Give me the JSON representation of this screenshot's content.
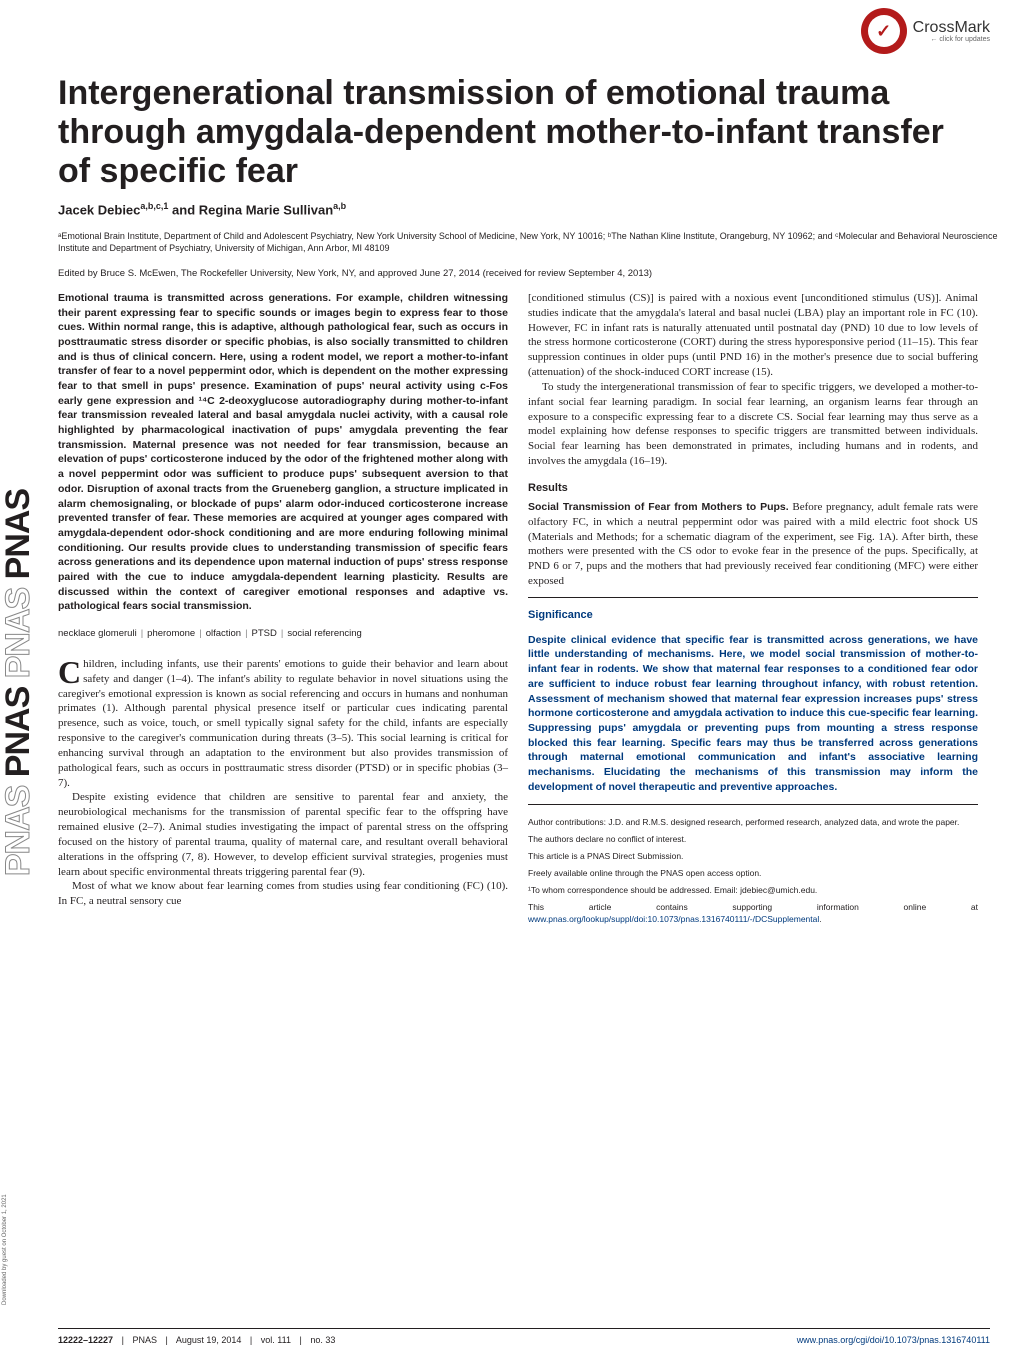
{
  "sidebar": {
    "pnas_text": "PNAS",
    "pnas_outline": "PNAS",
    "download_note": "Downloaded by guest on October 1, 2021"
  },
  "crossmark": {
    "label": "CrossMark",
    "sub": "← click for updates",
    "badge_bg": "#b31b1b",
    "check_glyph": "✓"
  },
  "title": "Intergenerational transmission of emotional trauma through amygdala-dependent mother-to-infant transfer of specific fear",
  "authors_html": "Jacek Debiec<sup>a,b,c,1</sup> and Regina Marie Sullivan<sup>a,b</sup>",
  "affiliations": "ᵃEmotional Brain Institute, Department of Child and Adolescent Psychiatry, New York University School of Medicine, New York, NY 10016; ᵇThe Nathan Kline Institute, Orangeburg, NY 10962; and ᶜMolecular and Behavioral Neuroscience Institute and Department of Psychiatry, University of Michigan, Ann Arbor, MI 48109",
  "edited": "Edited by Bruce S. McEwen, The Rockefeller University, New York, NY, and approved June 27, 2014 (received for review September 4, 2013)",
  "abstract": "Emotional trauma is transmitted across generations. For example, children witnessing their parent expressing fear to specific sounds or images begin to express fear to those cues. Within normal range, this is adaptive, although pathological fear, such as occurs in posttraumatic stress disorder or specific phobias, is also socially transmitted to children and is thus of clinical concern. Here, using a rodent model, we report a mother-to-infant transfer of fear to a novel peppermint odor, which is dependent on the mother expressing fear to that smell in pups' presence. Examination of pups' neural activity using c-Fos early gene expression and ¹⁴C 2-deoxyglucose autoradiography during mother-to-infant fear transmission revealed lateral and basal amygdala nuclei activity, with a causal role highlighted by pharmacological inactivation of pups' amygdala preventing the fear transmission. Maternal presence was not needed for fear transmission, because an elevation of pups' corticosterone induced by the odor of the frightened mother along with a novel peppermint odor was sufficient to produce pups' subsequent aversion to that odor. Disruption of axonal tracts from the Grueneberg ganglion, a structure implicated in alarm chemosignaling, or blockade of pups' alarm odor-induced corticosterone increase prevented transfer of fear. These memories are acquired at younger ages compared with amygdala-dependent odor-shock conditioning and are more enduring following minimal conditioning. Our results provide clues to understanding transmission of specific fears across generations and its dependence upon maternal induction of pups' stress response paired with the cue to induce amygdala-dependent learning plasticity. Results are discussed within the context of caregiver emotional responses and adaptive vs. pathological fears social transmission.",
  "keywords": [
    "necklace glomeruli",
    "pheromone",
    "olfaction",
    "PTSD",
    "social referencing"
  ],
  "body_left": {
    "dropcap": "C",
    "p1": "hildren, including infants, use their parents' emotions to guide their behavior and learn about safety and danger (1–4). The infant's ability to regulate behavior in novel situations using the caregiver's emotional expression is known as social referencing and occurs in humans and nonhuman primates (1). Although parental physical presence itself or particular cues indicating parental presence, such as voice, touch, or smell typically signal safety for the child, infants are especially responsive to the caregiver's communication during threats (3–5). This social learning is critical for enhancing survival through an adaptation to the environment but also provides transmission of pathological fears, such as occurs in posttraumatic stress disorder (PTSD) or in specific phobias (3–7).",
    "p2": "Despite existing evidence that children are sensitive to parental fear and anxiety, the neurobiological mechanisms for the transmission of parental specific fear to the offspring have remained elusive (2–7). Animal studies investigating the impact of parental stress on the offspring focused on the history of parental trauma, quality of maternal care, and resultant overall behavioral alterations in the offspring (7, 8). However, to develop efficient survival strategies, progenies must learn about specific environmental threats triggering parental fear (9).",
    "p3": "Most of what we know about fear learning comes from studies using fear conditioning (FC) (10). In FC, a neutral sensory cue"
  },
  "body_right": {
    "p1": "[conditioned stimulus (CS)] is paired with a noxious event [unconditioned stimulus (US)]. Animal studies indicate that the amygdala's lateral and basal nuclei (LBA) play an important role in FC (10). However, FC in infant rats is naturally attenuated until postnatal day (PND) 10 due to low levels of the stress hormone corticosterone (CORT) during the stress hyporesponsive period (11–15). This fear suppression continues in older pups (until PND 16) in the mother's presence due to social buffering (attenuation) of the shock-induced CORT increase (15).",
    "p2": "To study the intergenerational transmission of fear to specific triggers, we developed a mother-to-infant social fear learning paradigm. In social fear learning, an organism learns fear through an exposure to a conspecific expressing fear to a discrete CS. Social fear learning may thus serve as a model explaining how defense responses to specific triggers are transmitted between individuals. Social fear learning has been demonstrated in primates, including humans and in rodents, and involves the amygdala (16–19).",
    "results_head": "Results",
    "results_runin": "Social Transmission of Fear from Mothers to Pups.",
    "results_text": " Before pregnancy, adult female rats were olfactory FC, in which a neutral peppermint odor was paired with a mild electric foot shock US (Materials and Methods; for a schematic diagram of the experiment, see Fig. 1A). After birth, these mothers were presented with the CS odor to evoke fear in the presence of the pups. Specifically, at PND 6 or 7, pups and the mothers that had previously received fear conditioning (MFC) were either exposed"
  },
  "significance": {
    "title": "Significance",
    "text": "Despite clinical evidence that specific fear is transmitted across generations, we have little understanding of mechanisms. Here, we model social transmission of mother-to-infant fear in rodents. We show that maternal fear responses to a conditioned fear odor are sufficient to induce robust fear learning throughout infancy, with robust retention. Assessment of mechanism showed that maternal fear expression increases pups' stress hormone corticosterone and amygdala activation to induce this cue-specific fear learning. Suppressing pups' amygdala or preventing pups from mounting a stress response blocked this fear learning. Specific fears may thus be transferred across generations through maternal emotional communication and infant's associative learning mechanisms. Elucidating the mechanisms of this transmission may inform the development of novel therapeutic and preventive approaches."
  },
  "footnotes": {
    "contrib": "Author contributions: J.D. and R.M.S. designed research, performed research, analyzed data, and wrote the paper.",
    "coi": "The authors declare no conflict of interest.",
    "direct": "This article is a PNAS Direct Submission.",
    "access": "Freely available online through the PNAS open access option.",
    "corresp": "¹To whom correspondence should be addressed. Email: jdebiec@umich.edu.",
    "si_pre": "This article contains supporting information online at ",
    "si_link": "www.pnas.org/lookup/suppl/doi:10.1073/pnas.1316740111/-/DCSupplemental",
    "si_post": "."
  },
  "footer": {
    "pages": "12222–12227",
    "journal": "PNAS",
    "date": "August 19, 2014",
    "vol": "vol. 111",
    "no": "no. 33",
    "doi": "www.pnas.org/cgi/doi/10.1073/pnas.1316740111"
  },
  "colors": {
    "text": "#231f20",
    "link": "#003a7d",
    "crossmark": "#b31b1b",
    "background": "#ffffff"
  },
  "typography": {
    "title_fontsize": 34,
    "abstract_fontsize": 10.5,
    "body_fontsize": 11,
    "footnote_fontsize": 8.5,
    "footer_fontsize": 9
  }
}
